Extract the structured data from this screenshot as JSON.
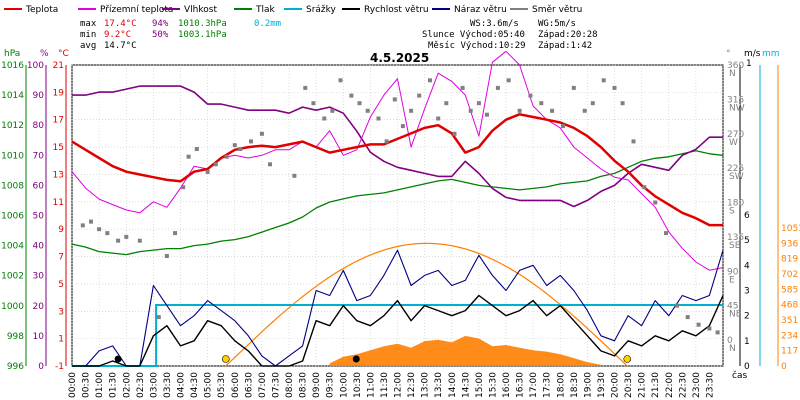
{
  "chart_data": {
    "type": "line",
    "title": "4.5.2025",
    "legend": [
      {
        "label": "Teplota",
        "color": "#e00000"
      },
      {
        "label": "Přízemní teplota",
        "color": "#e000e0"
      },
      {
        "label": "Vlhkost",
        "color": "#800080"
      },
      {
        "label": "Tlak",
        "color": "#008000"
      },
      {
        "label": "Srážky",
        "color": "#00b0d0"
      },
      {
        "label": "Rychlost větru",
        "color": "#000000"
      },
      {
        "label": "Náraz větru",
        "color": "#000080"
      },
      {
        "label": "Směr větru",
        "color": "#808080"
      }
    ],
    "stats": {
      "max": {
        "label": "max",
        "temp": "17.4°C",
        "hum": "94%",
        "press": "1010.3hPa",
        "rain": "0.2mm"
      },
      "min": {
        "label": "min",
        "temp": "9.2°C",
        "hum": "50%",
        "press": "1003.1hPa"
      },
      "avg": {
        "label": "avg",
        "temp": "14.7°C"
      }
    },
    "info": {
      "ws": "WS:3.6m/s",
      "wg": "WG:5m/s",
      "sun": "Slunce Východ:05:40",
      "sun_set": "Západ:20:28",
      "moon": "Měsíc Východ:10:29",
      "moon_set": "Západ:1:42"
    },
    "axes": {
      "hpa_unit": "hPa",
      "pct_unit": "%",
      "c_unit": "°C",
      "deg_unit": "°",
      "ms_unit": "m/s",
      "mm_unit": "mm",
      "ms_small": "1",
      "time_unit": "čas",
      "hpa_ticks": [
        "1016",
        "1014",
        "1012",
        "1010",
        "1008",
        "1006",
        "1004",
        "1002",
        "1000",
        "998",
        "996"
      ],
      "pct_ticks": [
        "100",
        "90",
        "80",
        "70",
        "60",
        "50",
        "40",
        "30",
        "20",
        "10",
        "0"
      ],
      "c_ticks": [
        "21",
        "19",
        "17",
        "15",
        "13",
        "11",
        "9",
        "7",
        "5",
        "3",
        "1",
        "-1"
      ],
      "dir_ticks": [
        "360",
        "315",
        "270",
        "225",
        "180",
        "135",
        "90",
        "45",
        "0"
      ],
      "dir_labels": [
        "N",
        "NW",
        "W",
        "SW",
        "S",
        "SE",
        "E",
        "NE",
        "N"
      ],
      "ms_ticks": [
        "6",
        "5",
        "4",
        "3",
        "2",
        "1",
        "0"
      ],
      "mm_ticks": [
        "1053",
        "936",
        "819",
        "702",
        "585",
        "468",
        "351",
        "234",
        "117",
        "0"
      ],
      "hours": [
        "00:00",
        "00:30",
        "01:00",
        "01:30",
        "02:00",
        "02:30",
        "03:00",
        "03:30",
        "04:00",
        "04:30",
        "05:00",
        "05:30",
        "06:00",
        "06:30",
        "07:00",
        "07:30",
        "08:00",
        "08:30",
        "09:00",
        "09:30",
        "10:00",
        "10:30",
        "11:00",
        "11:30",
        "12:00",
        "12:30",
        "13:00",
        "13:30",
        "14:00",
        "14:30",
        "15:00",
        "15:30",
        "16:00",
        "16:30",
        "17:00",
        "17:30",
        "18:00",
        "18:30",
        "19:00",
        "19:30",
        "20:00",
        "20:30",
        "21:00",
        "21:30",
        "22:00",
        "22:30",
        "23:00",
        "23:30"
      ]
    },
    "series": [
      {
        "name": "Teplota",
        "unit": "°C",
        "color": "#e00000",
        "x": [
          0,
          0.5,
          1,
          1.5,
          2,
          2.5,
          3,
          3.5,
          4,
          4.5,
          5,
          5.5,
          6,
          6.5,
          7,
          7.5,
          8,
          8.5,
          9,
          9.5,
          10,
          10.5,
          11,
          11.5,
          12,
          12.5,
          13,
          13.5,
          14,
          14.5,
          15,
          15.5,
          16,
          16.5,
          17,
          17.5,
          18,
          18.5,
          19,
          19.5,
          20,
          20.5,
          21,
          21.5,
          22,
          22.5,
          23,
          23.5,
          24
        ],
        "y": [
          15.4,
          14.8,
          14.2,
          13.6,
          13.2,
          13.0,
          12.8,
          12.6,
          12.5,
          13.2,
          13.4,
          14.2,
          14.8,
          15.0,
          15.1,
          15.0,
          15.2,
          15.4,
          15.0,
          14.6,
          14.8,
          15.0,
          15.2,
          15.2,
          15.6,
          16.0,
          16.4,
          16.6,
          16.0,
          14.6,
          15.0,
          16.2,
          17.0,
          17.4,
          17.2,
          17.0,
          16.8,
          16.4,
          15.8,
          15.0,
          14.0,
          13.2,
          12.2,
          11.4,
          10.8,
          10.2,
          9.8,
          9.3,
          9.3
        ]
      },
      {
        "name": "Přízemní teplota",
        "unit": "°C",
        "color": "#e000e0",
        "x": [
          0,
          0.5,
          1,
          1.5,
          2,
          2.5,
          3,
          3.5,
          4,
          4.5,
          5,
          5.5,
          6,
          6.5,
          7,
          7.5,
          8,
          8.5,
          9,
          9.5,
          10,
          10.5,
          11,
          11.5,
          12,
          12.5,
          13,
          13.5,
          14,
          14.5,
          15,
          15.5,
          16,
          16.5,
          17,
          17.5,
          18,
          18.5,
          19,
          19.5,
          20,
          20.5,
          21,
          21.5,
          22,
          22.5,
          23,
          23.5,
          24
        ],
        "y": [
          13.2,
          12.0,
          11.2,
          10.8,
          10.4,
          10.2,
          11.0,
          10.6,
          12.0,
          13.6,
          13.4,
          14.2,
          14.4,
          14.2,
          14.4,
          14.8,
          14.8,
          15.4,
          15.0,
          16.2,
          14.4,
          14.8,
          17.2,
          18.8,
          20.0,
          15.0,
          17.8,
          20.4,
          19.8,
          18.8,
          15.8,
          21.2,
          22.0,
          21.0,
          18.0,
          17.0,
          16.4,
          15.0,
          14.2,
          13.4,
          12.8,
          12.6,
          11.6,
          10.6,
          8.8,
          7.6,
          6.6,
          6.0,
          6.2
        ]
      },
      {
        "name": "Vlhkost",
        "unit": "%",
        "color": "#800080",
        "x": [
          0,
          0.5,
          1,
          1.5,
          2,
          2.5,
          3,
          3.5,
          4,
          4.5,
          5,
          5.5,
          6,
          6.5,
          7,
          7.5,
          8,
          8.5,
          9,
          9.5,
          10,
          10.5,
          11,
          11.5,
          12,
          12.5,
          13,
          13.5,
          14,
          14.5,
          15,
          15.5,
          16,
          16.5,
          17,
          17.5,
          18,
          18.5,
          19,
          19.5,
          20,
          20.5,
          21,
          21.5,
          22,
          22.5,
          23,
          23.5,
          24
        ],
        "y": [
          90,
          90,
          91,
          91,
          92,
          93,
          93,
          93,
          93,
          91,
          87,
          87,
          86,
          85,
          85,
          85,
          84,
          86,
          85,
          86,
          84,
          78,
          71,
          68,
          66,
          65,
          64,
          63,
          63,
          68,
          64,
          59,
          56,
          55,
          55,
          55,
          55,
          53,
          55,
          58,
          60,
          64,
          67,
          66,
          65,
          70,
          72,
          76,
          76
        ]
      },
      {
        "name": "Tlak",
        "unit": "hPa",
        "color": "#008000",
        "x": [
          0,
          0.5,
          1,
          1.5,
          2,
          2.5,
          3,
          3.5,
          4,
          4.5,
          5,
          5.5,
          6,
          6.5,
          7,
          7.5,
          8,
          8.5,
          9,
          9.5,
          10,
          10.5,
          11,
          11.5,
          12,
          12.5,
          13,
          13.5,
          14,
          14.5,
          15,
          15.5,
          16,
          16.5,
          17,
          17.5,
          18,
          18.5,
          19,
          19.5,
          20,
          20.5,
          21,
          21.5,
          22,
          22.5,
          23,
          23.5,
          24
        ],
        "y": [
          1004.1,
          1003.9,
          1003.6,
          1003.5,
          1003.4,
          1003.6,
          1003.7,
          1003.8,
          1003.8,
          1004.0,
          1004.1,
          1004.3,
          1004.4,
          1004.6,
          1004.9,
          1005.2,
          1005.5,
          1005.9,
          1006.5,
          1006.9,
          1007.1,
          1007.3,
          1007.4,
          1007.5,
          1007.7,
          1007.9,
          1008.1,
          1008.3,
          1008.4,
          1008.2,
          1008.0,
          1007.9,
          1007.8,
          1007.7,
          1007.8,
          1007.9,
          1008.1,
          1008.2,
          1008.3,
          1008.6,
          1008.8,
          1009.2,
          1009.6,
          1009.8,
          1009.9,
          1010.1,
          1010.3,
          1010.1,
          1010.0
        ]
      },
      {
        "name": "Srážky",
        "unit": "mm",
        "color": "#00b0d0",
        "x": [
          0,
          3.1,
          3.1,
          24
        ],
        "y": [
          0,
          0,
          0.2,
          0.2
        ]
      },
      {
        "name": "Rychlost větru",
        "unit": "m/s",
        "color": "#000000",
        "x": [
          0,
          0.5,
          1,
          1.5,
          2,
          2.5,
          3,
          3.5,
          4,
          4.5,
          5,
          5.5,
          6,
          6.5,
          7,
          7.5,
          8,
          8.5,
          9,
          9.5,
          10,
          10.5,
          11,
          11.5,
          12,
          12.5,
          13,
          13.5,
          14,
          14.5,
          15,
          15.5,
          16,
          16.5,
          17,
          17.5,
          18,
          18.5,
          19,
          19.5,
          20,
          20.5,
          21,
          21.5,
          22,
          22.5,
          23,
          23.5,
          24
        ],
        "y": [
          0,
          0,
          0,
          0.2,
          0,
          0,
          1.2,
          1.6,
          0.8,
          1.0,
          1.8,
          1.6,
          1.0,
          0.6,
          0,
          0,
          0,
          0.2,
          1.8,
          1.6,
          2.4,
          1.8,
          1.6,
          2.0,
          2.6,
          1.8,
          2.4,
          2.2,
          2.0,
          2.2,
          2.8,
          2.4,
          2.0,
          2.2,
          2.6,
          2.0,
          2.4,
          1.8,
          1.2,
          0.6,
          0.4,
          1.0,
          0.8,
          1.2,
          1.0,
          1.4,
          1.2,
          1.6,
          2.8
        ]
      },
      {
        "name": "Náraz větru",
        "unit": "m/s",
        "color": "#000080",
        "x": [
          0,
          0.5,
          1,
          1.5,
          2,
          2.5,
          3,
          3.5,
          4,
          4.5,
          5,
          5.5,
          6,
          6.5,
          7,
          7.5,
          8,
          8.5,
          9,
          9.5,
          10,
          10.5,
          11,
          11.5,
          12,
          12.5,
          13,
          13.5,
          14,
          14.5,
          15,
          15.5,
          16,
          16.5,
          17,
          17.5,
          18,
          18.5,
          19,
          19.5,
          20,
          20.5,
          21,
          21.5,
          22,
          22.5,
          23,
          23.5,
          24
        ],
        "y": [
          0,
          0,
          0.6,
          0.8,
          0,
          0,
          3.2,
          2.4,
          1.6,
          2.0,
          2.6,
          2.2,
          1.8,
          1.2,
          0.4,
          0,
          0.4,
          0.8,
          3.0,
          2.8,
          3.8,
          2.6,
          2.8,
          3.6,
          4.6,
          3.2,
          3.6,
          3.8,
          3.2,
          3.4,
          4.4,
          3.6,
          3.0,
          3.8,
          4.0,
          3.2,
          3.6,
          3.0,
          2.2,
          1.2,
          1.0,
          2.0,
          1.6,
          2.6,
          2.0,
          2.8,
          2.6,
          2.8,
          4.6
        ]
      },
      {
        "name": "Směr větru",
        "unit": "°",
        "color": "#808080",
        "x": [
          0.4,
          0.7,
          1.0,
          1.3,
          1.7,
          2.0,
          2.5,
          3.2,
          3.5,
          3.8,
          4.1,
          4.3,
          4.6,
          5.0,
          5.3,
          5.7,
          6.0,
          6.2,
          6.6,
          7.0,
          7.3,
          8.2,
          8.6,
          8.9,
          9.3,
          9.6,
          9.9,
          10.3,
          10.6,
          10.9,
          11.3,
          11.6,
          11.9,
          12.2,
          12.5,
          12.8,
          13.2,
          13.5,
          13.8,
          14.1,
          14.4,
          14.7,
          15.0,
          15.3,
          15.7,
          16.1,
          16.5,
          16.9,
          17.3,
          17.7,
          18.1,
          18.5,
          18.9,
          19.2,
          19.6,
          20.0,
          20.3,
          20.7,
          21.1,
          21.5,
          21.9,
          22.3,
          22.7,
          23.1,
          23.5,
          23.8
        ],
        "y": [
          150,
          155,
          145,
          140,
          130,
          135,
          130,
          30,
          110,
          140,
          200,
          240,
          250,
          220,
          230,
          240,
          255,
          250,
          260,
          270,
          230,
          215,
          330,
          310,
          290,
          300,
          340,
          320,
          310,
          300,
          290,
          260,
          315,
          280,
          300,
          320,
          340,
          290,
          310,
          270,
          330,
          300,
          310,
          295,
          330,
          340,
          300,
          320,
          310,
          300,
          280,
          330,
          300,
          310,
          340,
          330,
          310,
          260,
          200,
          180,
          140,
          45,
          30,
          20,
          15,
          10
        ]
      },
      {
        "name": "Sluneční záření",
        "unit": "W/m2",
        "color": "#ff8000",
        "x": [
          9.5,
          10,
          10.5,
          11,
          11.5,
          12,
          12.5,
          13,
          13.5,
          14,
          14.5,
          15,
          15.5,
          16,
          16.5,
          17,
          17.5,
          18,
          18.5,
          19,
          19.5
        ],
        "y": [
          20,
          70,
          90,
          120,
          150,
          170,
          140,
          190,
          200,
          180,
          230,
          210,
          150,
          160,
          140,
          120,
          110,
          90,
          60,
          30,
          10
        ]
      }
    ],
    "solar_curve": {
      "x": [
        5.67,
        13.0,
        20.47
      ],
      "y": [
        0,
        936,
        0
      ]
    }
  }
}
